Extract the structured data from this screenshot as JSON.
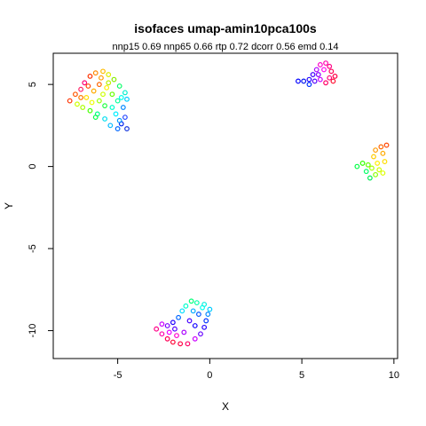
{
  "chart_data": {
    "type": "scatter",
    "title": "isofaces umap-amin10pca100s",
    "subtitle": "nnp15 0.69 nnp65 0.66 rtp 0.72 dcorr 0.56 emd 0.14",
    "xlabel": "X",
    "ylabel": "Y",
    "xlim": [
      -8.5,
      10.2
    ],
    "ylim": [
      -11.7,
      6.9
    ],
    "xticks": [
      -5,
      0,
      5,
      10
    ],
    "yticks": [
      5,
      0,
      -5,
      -10
    ],
    "xtick_labels": [
      "-5",
      "0",
      "5",
      "10"
    ],
    "ytick_labels": [
      "5",
      "0",
      "-5",
      "-10"
    ],
    "grid": false,
    "legend": "none",
    "color_scale": "rainbow (red-yellow-green-cyan-blue-magenta)",
    "clusters": [
      {
        "points": [
          {
            "x": -7.6,
            "y": 4.0,
            "c": "#ff3300"
          },
          {
            "x": -7.3,
            "y": 4.4,
            "c": "#ff5500"
          },
          {
            "x": -7.0,
            "y": 4.7,
            "c": "#ff2266"
          },
          {
            "x": -6.8,
            "y": 5.1,
            "c": "#ff0077"
          },
          {
            "x": -6.5,
            "y": 5.5,
            "c": "#ff3300"
          },
          {
            "x": -6.2,
            "y": 5.7,
            "c": "#ff8800"
          },
          {
            "x": -5.8,
            "y": 5.8,
            "c": "#ffbb00"
          },
          {
            "x": -5.5,
            "y": 5.6,
            "c": "#ddee00"
          },
          {
            "x": -5.2,
            "y": 5.3,
            "c": "#88ee00"
          },
          {
            "x": -4.9,
            "y": 4.9,
            "c": "#00ff66"
          },
          {
            "x": -4.6,
            "y": 4.5,
            "c": "#00eecc"
          },
          {
            "x": -4.5,
            "y": 4.1,
            "c": "#00ccff"
          },
          {
            "x": -4.7,
            "y": 3.6,
            "c": "#0088ff"
          },
          {
            "x": -4.6,
            "y": 3.0,
            "c": "#2244ff"
          },
          {
            "x": -4.8,
            "y": 2.6,
            "c": "#0022ee"
          },
          {
            "x": -4.5,
            "y": 2.3,
            "c": "#1133dd"
          },
          {
            "x": -5.0,
            "y": 2.3,
            "c": "#0066ff"
          },
          {
            "x": -5.4,
            "y": 2.5,
            "c": "#00bbff"
          },
          {
            "x": -5.7,
            "y": 2.9,
            "c": "#00ddee"
          },
          {
            "x": -6.1,
            "y": 3.2,
            "c": "#00ff88"
          },
          {
            "x": -6.5,
            "y": 3.4,
            "c": "#44ff00"
          },
          {
            "x": -6.9,
            "y": 3.6,
            "c": "#aaff00"
          },
          {
            "x": -7.2,
            "y": 3.8,
            "c": "#ccff00"
          },
          {
            "x": -6.7,
            "y": 4.2,
            "c": "#ffdd00"
          },
          {
            "x": -6.3,
            "y": 4.6,
            "c": "#ffaa00"
          },
          {
            "x": -6.0,
            "y": 5.0,
            "c": "#ff6600"
          },
          {
            "x": -5.6,
            "y": 4.8,
            "c": "#ffee00"
          },
          {
            "x": -5.3,
            "y": 4.4,
            "c": "#66ff00"
          },
          {
            "x": -5.0,
            "y": 4.0,
            "c": "#00ff99"
          },
          {
            "x": -5.3,
            "y": 3.6,
            "c": "#00ffcc"
          },
          {
            "x": -5.7,
            "y": 3.7,
            "c": "#22ff44"
          },
          {
            "x": -6.0,
            "y": 4.0,
            "c": "#99ff00"
          },
          {
            "x": -6.4,
            "y": 3.9,
            "c": "#eeff00"
          },
          {
            "x": -5.8,
            "y": 4.4,
            "c": "#ccff00"
          },
          {
            "x": -5.1,
            "y": 3.2,
            "c": "#00eeff"
          },
          {
            "x": -4.9,
            "y": 2.8,
            "c": "#0099ff"
          },
          {
            "x": -5.5,
            "y": 5.1,
            "c": "#bbee00"
          },
          {
            "x": -6.6,
            "y": 4.9,
            "c": "#ff4400"
          },
          {
            "x": -7.0,
            "y": 4.2,
            "c": "#ff7700"
          },
          {
            "x": -4.8,
            "y": 4.2,
            "c": "#00ffee"
          },
          {
            "x": -6.2,
            "y": 3.0,
            "c": "#00ff44"
          },
          {
            "x": -5.9,
            "y": 5.4,
            "c": "#ff9900"
          }
        ]
      },
      {
        "points": [
          {
            "x": 4.8,
            "y": 5.2,
            "c": "#0000ff"
          },
          {
            "x": 5.1,
            "y": 5.2,
            "c": "#0011ee"
          },
          {
            "x": 5.4,
            "y": 5.3,
            "c": "#2200ff"
          },
          {
            "x": 5.6,
            "y": 5.6,
            "c": "#4400ff"
          },
          {
            "x": 5.4,
            "y": 5.0,
            "c": "#0033ff"
          },
          {
            "x": 5.8,
            "y": 5.9,
            "c": "#aa00ff"
          },
          {
            "x": 6.0,
            "y": 6.2,
            "c": "#ff00cc"
          },
          {
            "x": 6.3,
            "y": 6.3,
            "c": "#ff00aa"
          },
          {
            "x": 6.5,
            "y": 6.1,
            "c": "#ff0088"
          },
          {
            "x": 6.6,
            "y": 5.8,
            "c": "#ff0055"
          },
          {
            "x": 6.8,
            "y": 5.5,
            "c": "#ff0044"
          },
          {
            "x": 6.7,
            "y": 5.2,
            "c": "#ff1133"
          },
          {
            "x": 6.3,
            "y": 5.1,
            "c": "#ff0066"
          },
          {
            "x": 6.0,
            "y": 5.3,
            "c": "#cc00ff"
          },
          {
            "x": 5.9,
            "y": 5.6,
            "c": "#8800ff"
          },
          {
            "x": 6.2,
            "y": 5.9,
            "c": "#ff00ee"
          },
          {
            "x": 5.7,
            "y": 5.2,
            "c": "#5500ff"
          },
          {
            "x": 6.5,
            "y": 5.4,
            "c": "#ff0077"
          }
        ]
      },
      {
        "points": [
          {
            "x": 8.0,
            "y": 0.0,
            "c": "#00ff44"
          },
          {
            "x": 8.3,
            "y": 0.2,
            "c": "#33ff00"
          },
          {
            "x": 8.5,
            "y": -0.3,
            "c": "#00ff66"
          },
          {
            "x": 8.7,
            "y": -0.7,
            "c": "#00ee55"
          },
          {
            "x": 9.0,
            "y": -0.5,
            "c": "#88ff00"
          },
          {
            "x": 9.2,
            "y": -0.2,
            "c": "#ccff00"
          },
          {
            "x": 9.1,
            "y": 0.2,
            "c": "#ffee00"
          },
          {
            "x": 8.9,
            "y": 0.6,
            "c": "#ffcc00"
          },
          {
            "x": 9.0,
            "y": 1.0,
            "c": "#ff9900"
          },
          {
            "x": 9.3,
            "y": 1.2,
            "c": "#ff6600"
          },
          {
            "x": 9.6,
            "y": 1.3,
            "c": "#ff4400"
          },
          {
            "x": 9.4,
            "y": 0.8,
            "c": "#ffaa00"
          },
          {
            "x": 9.5,
            "y": 0.3,
            "c": "#ffdd00"
          },
          {
            "x": 8.6,
            "y": 0.1,
            "c": "#66ff00"
          },
          {
            "x": 8.8,
            "y": -0.1,
            "c": "#aaff00"
          },
          {
            "x": 9.4,
            "y": -0.4,
            "c": "#ddff00"
          }
        ]
      },
      {
        "points": [
          {
            "x": -2.9,
            "y": -9.9,
            "c": "#ff0088"
          },
          {
            "x": -2.6,
            "y": -10.2,
            "c": "#ff00aa"
          },
          {
            "x": -2.3,
            "y": -10.5,
            "c": "#ff0055"
          },
          {
            "x": -2.0,
            "y": -10.7,
            "c": "#ff0033"
          },
          {
            "x": -1.6,
            "y": -10.8,
            "c": "#ff0044"
          },
          {
            "x": -1.2,
            "y": -10.8,
            "c": "#ff0066"
          },
          {
            "x": -0.8,
            "y": -10.5,
            "c": "#cc00ff"
          },
          {
            "x": -0.5,
            "y": -10.2,
            "c": "#6600ff"
          },
          {
            "x": -0.3,
            "y": -9.8,
            "c": "#2200ff"
          },
          {
            "x": -0.2,
            "y": -9.4,
            "c": "#0033ff"
          },
          {
            "x": -0.1,
            "y": -9.0,
            "c": "#0088ff"
          },
          {
            "x": 0.0,
            "y": -8.7,
            "c": "#00ccff"
          },
          {
            "x": -0.3,
            "y": -8.4,
            "c": "#00eedd"
          },
          {
            "x": -0.7,
            "y": -8.3,
            "c": "#00ffaa"
          },
          {
            "x": -1.0,
            "y": -8.2,
            "c": "#00ff77"
          },
          {
            "x": -1.3,
            "y": -8.5,
            "c": "#00ffcc"
          },
          {
            "x": -1.5,
            "y": -8.8,
            "c": "#00ddff"
          },
          {
            "x": -1.7,
            "y": -9.2,
            "c": "#0066ff"
          },
          {
            "x": -2.0,
            "y": -9.5,
            "c": "#2200ff"
          },
          {
            "x": -2.3,
            "y": -9.7,
            "c": "#7700ff"
          },
          {
            "x": -2.6,
            "y": -9.6,
            "c": "#cc00ff"
          },
          {
            "x": -1.1,
            "y": -9.4,
            "c": "#4400ff"
          },
          {
            "x": -0.8,
            "y": -9.7,
            "c": "#1100ff"
          },
          {
            "x": -1.4,
            "y": -10.1,
            "c": "#aa00ff"
          },
          {
            "x": -1.8,
            "y": -10.3,
            "c": "#ff00cc"
          },
          {
            "x": -0.6,
            "y": -9.0,
            "c": "#0055ff"
          },
          {
            "x": -0.9,
            "y": -8.8,
            "c": "#00aaff"
          },
          {
            "x": -2.2,
            "y": -10.1,
            "c": "#ee00ff"
          },
          {
            "x": -0.4,
            "y": -8.6,
            "c": "#00ffee"
          },
          {
            "x": -1.9,
            "y": -9.9,
            "c": "#5500ff"
          }
        ]
      }
    ]
  }
}
